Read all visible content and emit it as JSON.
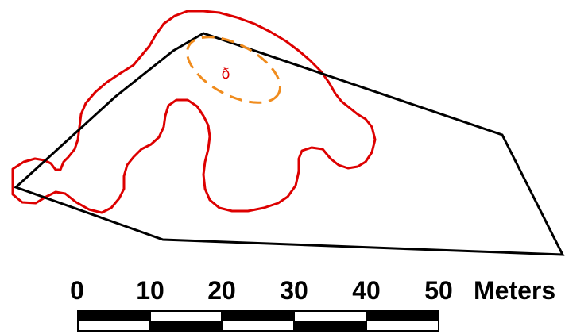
{
  "colors": {
    "polygon_outline": "#000000",
    "red_outline": "#dd0000",
    "orange_ellipse": "#f08c1e",
    "marker_text": "#dd0000",
    "scale_bar": "#000000"
  },
  "map": {
    "marker_label": "ð",
    "layers": [
      {
        "name": "black-polygon",
        "style": "solid"
      },
      {
        "name": "red-contour",
        "style": "solid"
      },
      {
        "name": "orange-ellipse",
        "style": "dashed"
      }
    ]
  },
  "scale_bar": {
    "ticks": [
      "0",
      "10",
      "20",
      "30",
      "40",
      "50"
    ],
    "unit": "Meters",
    "segments": 5
  }
}
